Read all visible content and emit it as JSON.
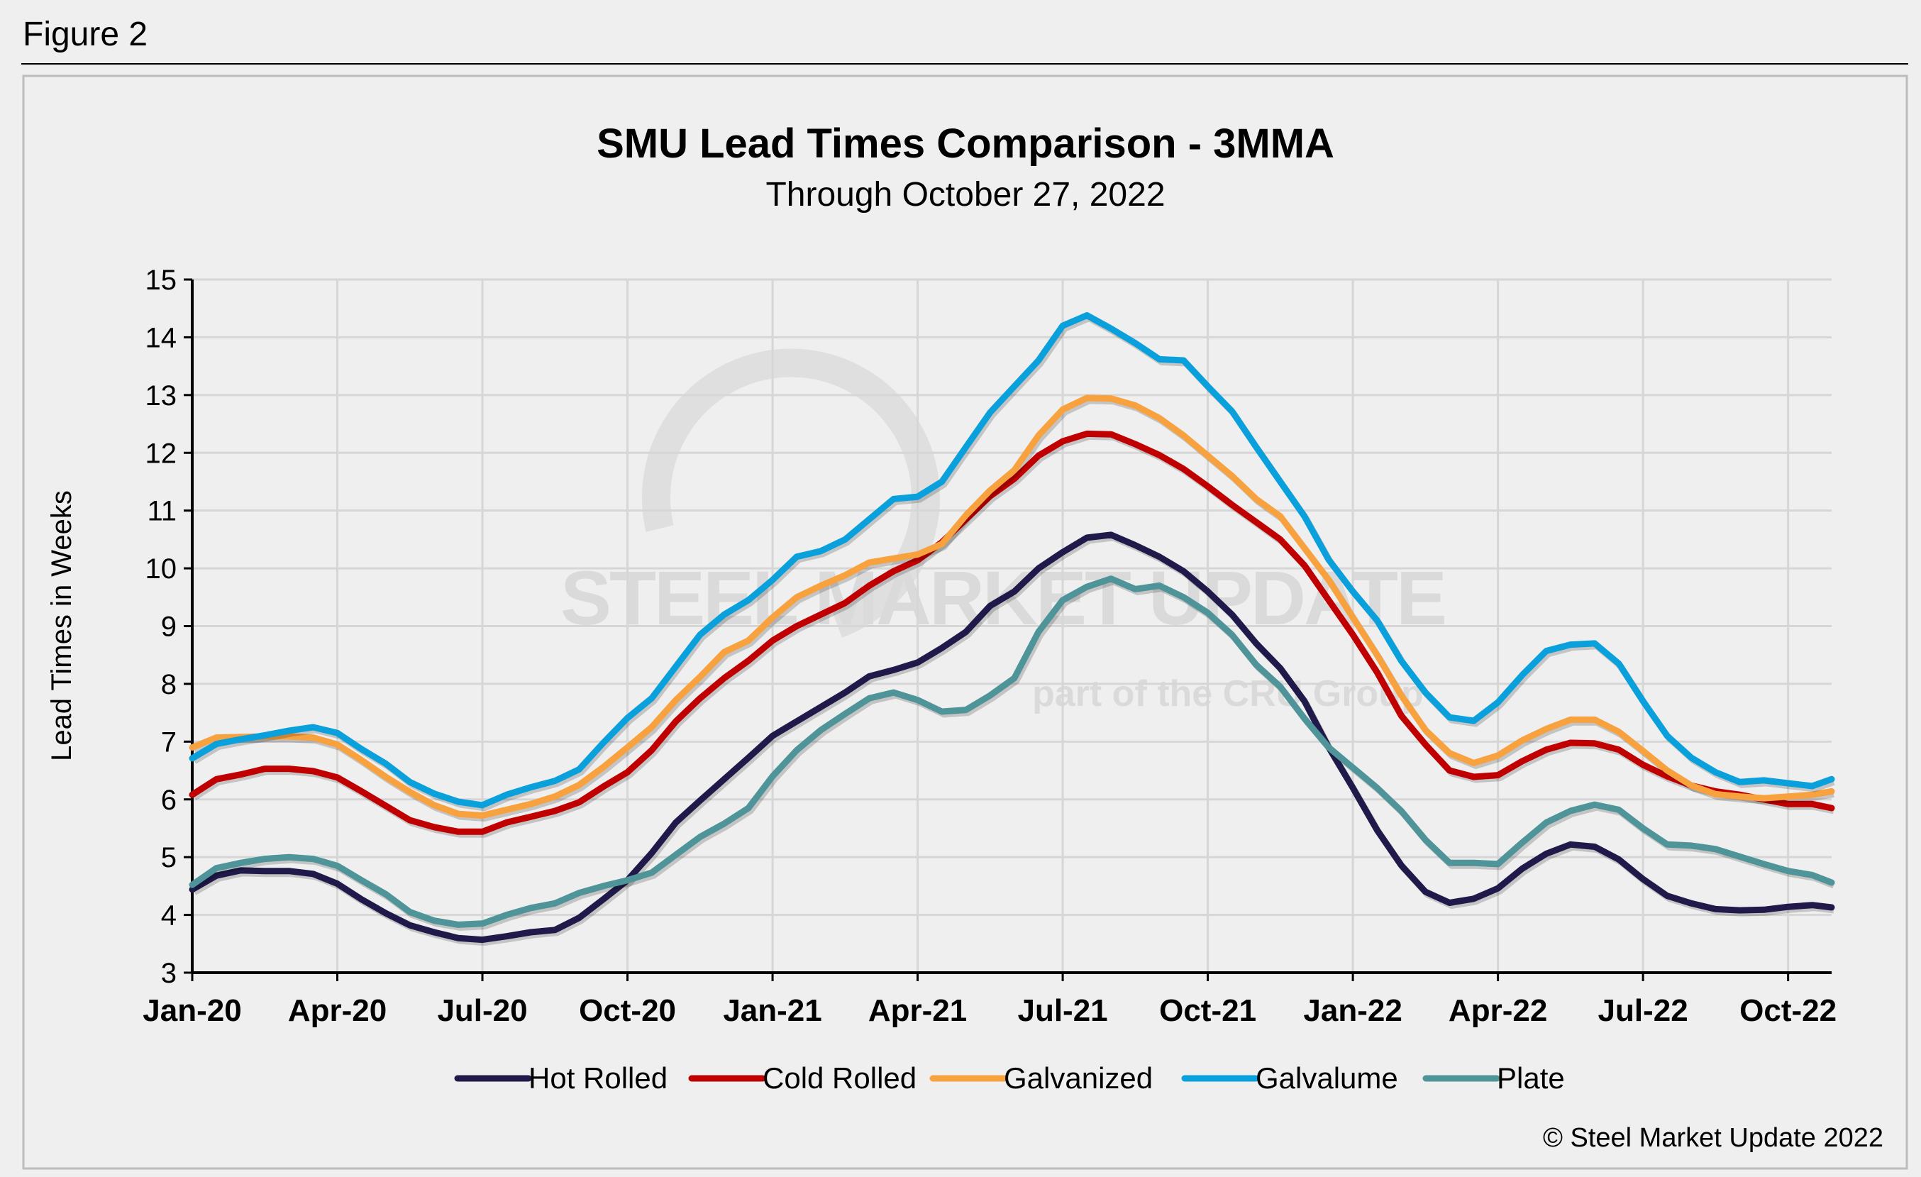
{
  "figure_label": "Figure 2",
  "copyright": "© Steel Market Update 2022",
  "watermark": {
    "main": "STEEL MARKET UPDATE",
    "sub": "part of the CRU Group"
  },
  "chart_data": {
    "type": "line",
    "title": "SMU Lead Times Comparison - 3MMA",
    "subtitle": "Through October 27, 2022",
    "xlabel": "",
    "ylabel": "Lead Times in Weeks",
    "ylim": [
      3,
      15
    ],
    "yticks": [
      3,
      4,
      5,
      6,
      7,
      8,
      9,
      10,
      11,
      12,
      13,
      14,
      15
    ],
    "x_units": "months since Jan-20",
    "xlim": [
      0,
      33.9
    ],
    "xticks": [
      0,
      3,
      6,
      9,
      12,
      15,
      18,
      21,
      24,
      27,
      30,
      33
    ],
    "xtick_labels": [
      "Jan-20",
      "Apr-20",
      "Jul-20",
      "Oct-20",
      "Jan-21",
      "Apr-21",
      "Jul-21",
      "Oct-21",
      "Jan-22",
      "Apr-22",
      "Jul-22",
      "Oct-22"
    ],
    "grid": true,
    "legend_position": "bottom",
    "x": [
      0,
      0.5,
      1,
      1.5,
      2,
      2.5,
      3,
      3.5,
      4,
      4.5,
      5,
      5.5,
      6,
      6.5,
      7,
      7.5,
      8,
      8.5,
      9,
      9.5,
      10,
      10.5,
      11,
      11.5,
      12,
      12.5,
      13,
      13.5,
      14,
      14.5,
      15,
      15.5,
      16,
      16.5,
      17,
      17.5,
      18,
      18.5,
      19,
      19.5,
      20,
      20.5,
      21,
      21.5,
      22,
      22.5,
      23,
      23.5,
      24,
      24.5,
      25,
      25.5,
      26,
      26.5,
      27,
      27.5,
      28,
      28.5,
      29,
      29.5,
      30,
      30.5,
      31,
      31.5,
      32,
      32.5,
      33,
      33.5,
      33.9
    ],
    "series": [
      {
        "name": "Hot Rolled",
        "color": "#1f1a4a",
        "values": [
          4.44,
          4.68,
          4.77,
          4.76,
          4.76,
          4.71,
          4.54,
          4.27,
          4.03,
          3.82,
          3.7,
          3.6,
          3.57,
          3.63,
          3.7,
          3.74,
          3.95,
          4.27,
          4.6,
          5.07,
          5.6,
          5.98,
          6.35,
          6.72,
          7.1,
          7.35,
          7.6,
          7.85,
          8.13,
          8.24,
          8.37,
          8.62,
          8.9,
          9.35,
          9.6,
          10.0,
          10.28,
          10.53,
          10.58,
          10.4,
          10.2,
          9.95,
          9.6,
          9.2,
          8.7,
          8.27,
          7.7,
          6.9,
          6.2,
          5.47,
          4.86,
          4.4,
          4.21,
          4.28,
          4.46,
          4.8,
          5.06,
          5.22,
          5.18,
          4.96,
          4.62,
          4.33,
          4.2,
          4.1,
          4.08,
          4.09,
          4.14,
          4.17,
          4.13
        ]
      },
      {
        "name": "Cold Rolled",
        "color": "#c00000",
        "values": [
          6.08,
          6.35,
          6.43,
          6.53,
          6.53,
          6.49,
          6.38,
          6.14,
          5.89,
          5.64,
          5.52,
          5.44,
          5.44,
          5.6,
          5.7,
          5.8,
          5.95,
          6.22,
          6.47,
          6.85,
          7.35,
          7.75,
          8.1,
          8.4,
          8.75,
          9.0,
          9.2,
          9.4,
          9.7,
          9.95,
          10.14,
          10.45,
          10.85,
          11.25,
          11.55,
          11.95,
          12.2,
          12.33,
          12.32,
          12.15,
          11.96,
          11.72,
          11.42,
          11.1,
          10.8,
          10.5,
          10.05,
          9.45,
          8.85,
          8.2,
          7.45,
          6.95,
          6.5,
          6.39,
          6.42,
          6.66,
          6.86,
          6.98,
          6.97,
          6.86,
          6.6,
          6.4,
          6.24,
          6.14,
          6.08,
          6.0,
          5.92,
          5.92,
          5.85
        ]
      },
      {
        "name": "Galvanized",
        "color": "#f8a13f",
        "values": [
          6.9,
          7.07,
          7.08,
          7.09,
          7.09,
          7.07,
          6.95,
          6.68,
          6.39,
          6.13,
          5.9,
          5.75,
          5.72,
          5.82,
          5.92,
          6.05,
          6.25,
          6.56,
          6.9,
          7.25,
          7.72,
          8.12,
          8.55,
          8.75,
          9.15,
          9.5,
          9.7,
          9.88,
          10.1,
          10.17,
          10.24,
          10.42,
          10.92,
          11.35,
          11.7,
          12.3,
          12.75,
          12.95,
          12.94,
          12.82,
          12.6,
          12.3,
          11.95,
          11.6,
          11.2,
          10.9,
          10.35,
          9.8,
          9.15,
          8.5,
          7.8,
          7.2,
          6.8,
          6.63,
          6.76,
          7.02,
          7.22,
          7.38,
          7.38,
          7.17,
          6.84,
          6.5,
          6.24,
          6.09,
          6.05,
          6.02,
          6.05,
          6.08,
          6.14
        ]
      },
      {
        "name": "Galvalume",
        "color": "#0aa0dc",
        "values": [
          6.71,
          6.96,
          7.04,
          7.11,
          7.19,
          7.25,
          7.15,
          6.87,
          6.62,
          6.3,
          6.1,
          5.96,
          5.9,
          6.08,
          6.21,
          6.32,
          6.52,
          6.98,
          7.41,
          7.75,
          8.3,
          8.85,
          9.2,
          9.45,
          9.8,
          10.2,
          10.3,
          10.5,
          10.85,
          11.2,
          11.24,
          11.5,
          12.1,
          12.7,
          13.15,
          13.6,
          14.2,
          14.38,
          14.15,
          13.9,
          13.62,
          13.6,
          13.15,
          12.72,
          12.1,
          11.5,
          10.9,
          10.15,
          9.6,
          9.1,
          8.4,
          7.85,
          7.42,
          7.36,
          7.68,
          8.15,
          8.57,
          8.68,
          8.7,
          8.35,
          7.7,
          7.1,
          6.72,
          6.47,
          6.3,
          6.33,
          6.28,
          6.23,
          6.35
        ]
      },
      {
        "name": "Plate",
        "color": "#4e9499",
        "values": [
          4.52,
          4.81,
          4.9,
          4.97,
          5.0,
          4.97,
          4.85,
          4.6,
          4.36,
          4.05,
          3.9,
          3.83,
          3.85,
          4.0,
          4.12,
          4.2,
          4.38,
          4.5,
          4.6,
          4.73,
          5.04,
          5.35,
          5.58,
          5.85,
          6.4,
          6.85,
          7.2,
          7.48,
          7.75,
          7.85,
          7.72,
          7.52,
          7.55,
          7.8,
          8.1,
          8.9,
          9.45,
          9.68,
          9.82,
          9.64,
          9.7,
          9.5,
          9.23,
          8.85,
          8.33,
          7.95,
          7.4,
          6.9,
          6.55,
          6.2,
          5.8,
          5.3,
          4.9,
          4.9,
          4.88,
          5.25,
          5.6,
          5.8,
          5.91,
          5.82,
          5.5,
          5.22,
          5.2,
          5.14,
          5.01,
          4.88,
          4.76,
          4.69,
          4.56
        ]
      }
    ]
  }
}
